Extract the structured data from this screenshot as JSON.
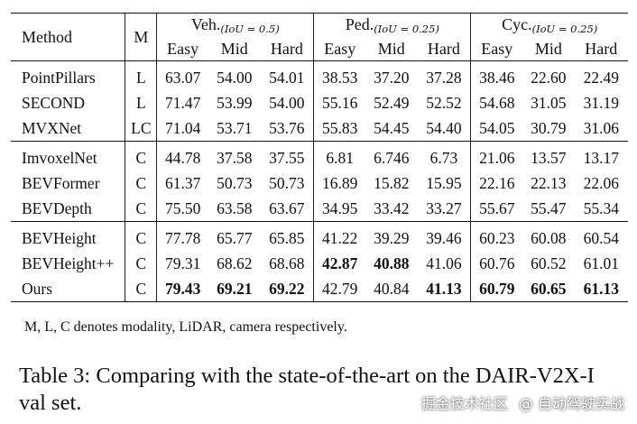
{
  "table": {
    "header": {
      "method": "Method",
      "modality": "M",
      "groups": [
        {
          "name": "Veh.",
          "iou": "(IoU = 0.5)"
        },
        {
          "name": "Ped.",
          "iou": "(IoU = 0.25)"
        },
        {
          "name": "Cyc.",
          "iou": "(IoU = 0.25)"
        }
      ],
      "sub": [
        "Easy",
        "Mid",
        "Hard",
        "Easy",
        "Mid",
        "Hard",
        "Easy",
        "Mid",
        "Hard"
      ]
    },
    "rows": [
      {
        "method": "PointPillars",
        "m": "L",
        "v": [
          "63.07",
          "54.00",
          "54.01",
          "38.53",
          "37.20",
          "37.28",
          "38.46",
          "22.60",
          "22.49"
        ],
        "bold": []
      },
      {
        "method": "SECOND",
        "m": "L",
        "v": [
          "71.47",
          "53.99",
          "54.00",
          "55.16",
          "52.49",
          "52.52",
          "54.68",
          "31.05",
          "31.19"
        ],
        "bold": []
      },
      {
        "method": "MVXNet",
        "m": "LC",
        "v": [
          "71.04",
          "53.71",
          "53.76",
          "55.83",
          "54.45",
          "54.40",
          "54.05",
          "30.79",
          "31.06"
        ],
        "bold": []
      },
      {
        "method": "ImvoxelNet",
        "m": "C",
        "v": [
          "44.78",
          "37.58",
          "37.55",
          "6.81",
          "6.746",
          "6.73",
          "21.06",
          "13.57",
          "13.17"
        ],
        "bold": []
      },
      {
        "method": "BEVFormer",
        "m": "C",
        "v": [
          "61.37",
          "50.73",
          "50.73",
          "16.89",
          "15.82",
          "15.95",
          "22.16",
          "22.13",
          "22.06"
        ],
        "bold": []
      },
      {
        "method": "BEVDepth",
        "m": "C",
        "v": [
          "75.50",
          "63.58",
          "63.67",
          "34.95",
          "33.42",
          "33.27",
          "55.67",
          "55.47",
          "55.34"
        ],
        "bold": []
      },
      {
        "method": "BEVHeight",
        "m": "C",
        "v": [
          "77.78",
          "65.77",
          "65.85",
          "41.22",
          "39.29",
          "39.46",
          "60.23",
          "60.08",
          "60.54"
        ],
        "bold": []
      },
      {
        "method": "BEVHeight++",
        "m": "C",
        "v": [
          "79.31",
          "68.62",
          "68.68",
          "42.87",
          "40.88",
          "41.06",
          "60.76",
          "60.52",
          "61.01"
        ],
        "bold": [
          3,
          4
        ]
      },
      {
        "method": "Ours",
        "m": "C",
        "v": [
          "79.43",
          "69.21",
          "69.22",
          "42.79",
          "40.84",
          "41.13",
          "60.79",
          "60.65",
          "61.13"
        ],
        "bold": [
          0,
          1,
          2,
          5,
          6,
          7,
          8
        ]
      }
    ],
    "group_starts": [
      3,
      6
    ]
  },
  "note": "M, L, C denotes modality, LiDAR, camera respectively.",
  "caption": "Table 3: Comparing with the state-of-the-art on the DAIR-V2X-I val set.",
  "watermark": {
    "left": "掘金技术社区",
    "right": "@ 自动驾驶实战"
  }
}
